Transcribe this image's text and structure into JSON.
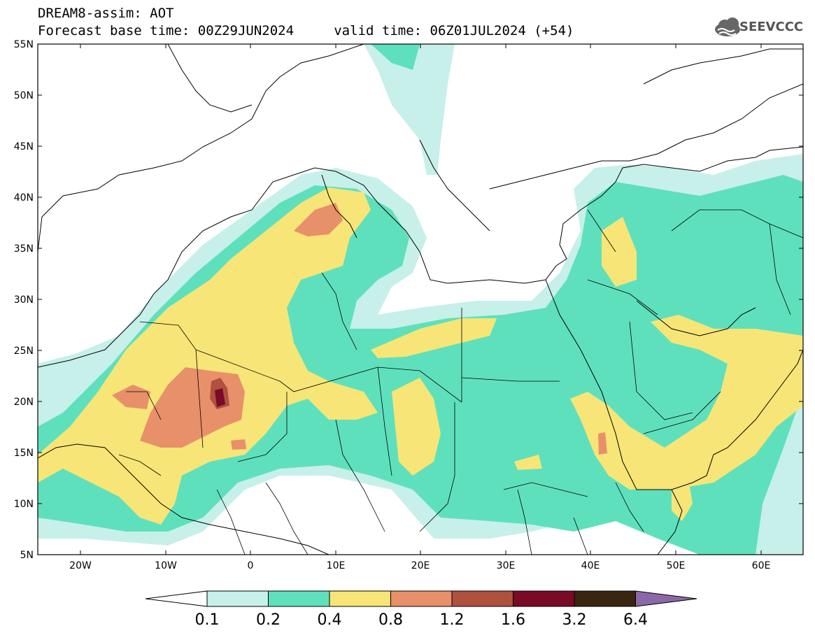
{
  "header": {
    "line1": "DREAM8-assim: AOT",
    "line2": "Forecast base time: 00Z29JUN2024     valid time: 06Z01JUL2024 (+54)",
    "logo_text": "SEEVCCC"
  },
  "axes": {
    "lat_labels": [
      "55N",
      "50N",
      "45N",
      "40N",
      "35N",
      "30N",
      "25N",
      "20N",
      "15N",
      "10N",
      "5N"
    ],
    "lon_labels": [
      "20W",
      "10W",
      "0",
      "10E",
      "20E",
      "30E",
      "40E",
      "50E",
      "60E"
    ]
  },
  "colorbar": {
    "labels": [
      "0.1",
      "0.2",
      "0.4",
      "0.8",
      "1.2",
      "1.6",
      "3.2",
      "6.4"
    ],
    "colors": [
      "#c6f0e9",
      "#5fe0bc",
      "#f7e577",
      "#e8906a",
      "#b0503f",
      "#7a0a25",
      "#3a2510",
      "#8c68a8"
    ]
  },
  "colors": {
    "aot_01": "#c6f0e9",
    "aot_02": "#5fe0bc",
    "aot_04": "#f7e577",
    "aot_08": "#e8906a",
    "aot_12": "#b0503f",
    "aot_16": "#7a0a25"
  }
}
